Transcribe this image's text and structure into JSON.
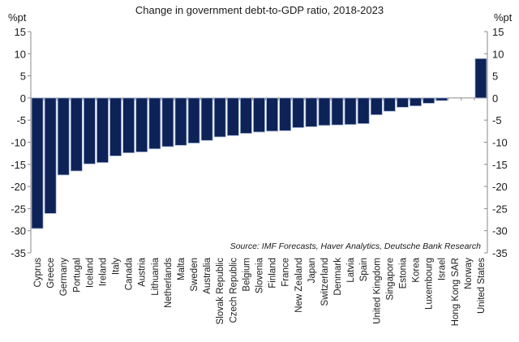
{
  "chart_data": {
    "type": "bar",
    "title": "Change in government debt-to-GDP ratio, 2018-2023",
    "ylabel_left": "%pt",
    "ylabel_right": "%pt",
    "xlabel": "",
    "ylim": [
      -35,
      15
    ],
    "yticks": [
      15,
      10,
      5,
      0,
      -5,
      -10,
      -15,
      -20,
      -25,
      -30,
      -35
    ],
    "grid": false,
    "legend": null,
    "source": "Source: IMF Forecasts, Haver Analytics, Deutsche Bank Research",
    "categories": [
      "Cyprus",
      "Greece",
      "Germany",
      "Portugal",
      "Iceland",
      "Ireland",
      "Italy",
      "Canada",
      "Austria",
      "Lithuania",
      "Netherlands",
      "Malta",
      "Sweden",
      "Australia",
      "Slovak Republic",
      "Czech Republic",
      "Belgium",
      "Slovenia",
      "Finland",
      "France",
      "New Zealand",
      "Japan",
      "Switzerland",
      "Denmark",
      "Latvia",
      "Spain",
      "United Kingdom",
      "Singapore",
      "Estonia",
      "Korea",
      "Luxembourg",
      "Israel",
      "Hong Kong SAR",
      "Norway",
      "United States"
    ],
    "values": [
      -29.5,
      -26.1,
      -17.4,
      -16.5,
      -14.9,
      -14.6,
      -13.1,
      -12.4,
      -12.2,
      -11.5,
      -11.0,
      -10.7,
      -10.2,
      -9.6,
      -8.8,
      -8.5,
      -8.0,
      -7.7,
      -7.5,
      -7.4,
      -6.7,
      -6.5,
      -6.2,
      -6.1,
      -6.0,
      -5.8,
      -3.8,
      -3.0,
      -2.1,
      -1.8,
      -1.2,
      -0.6,
      0.0,
      0.0,
      8.9
    ],
    "bar_color": "#0d2257"
  }
}
